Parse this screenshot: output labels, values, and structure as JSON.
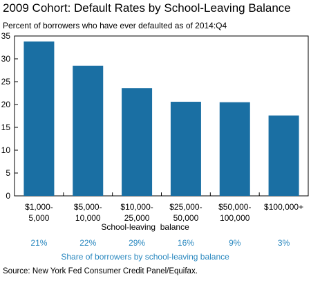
{
  "title": "2009 Cohort: Default Rates by School-Leaving Balance",
  "subtitle": "Percent of borrowers who have ever defaulted as of 2014:Q4",
  "source": "Source: New York Fed Consumer Credit Panel/Equifax.",
  "colors": {
    "bar": "#1a6fa3",
    "share_text": "#2a88bf",
    "axis": "#000000"
  },
  "chart_data": {
    "type": "bar",
    "categories": [
      [
        "$1,000-",
        "5,000"
      ],
      [
        "$5,000-",
        "10,000"
      ],
      [
        "$10,000-",
        "25,000"
      ],
      [
        "$25,000-",
        "50,000"
      ],
      [
        "$50,000-",
        "100,000"
      ],
      [
        "$100,000+"
      ]
    ],
    "values": [
      33.8,
      28.5,
      23.6,
      20.6,
      20.5,
      17.6
    ],
    "ylim": [
      0,
      35
    ],
    "yticks": [
      0,
      5,
      10,
      15,
      20,
      25,
      30,
      35
    ],
    "xlabel": "School-leaving  balance",
    "ylabel": "",
    "grid": false,
    "share_label": "Share of borrowers by school-leaving balance",
    "shares": [
      "21%",
      "22%",
      "29%",
      "16%",
      "9%",
      "3%"
    ]
  }
}
